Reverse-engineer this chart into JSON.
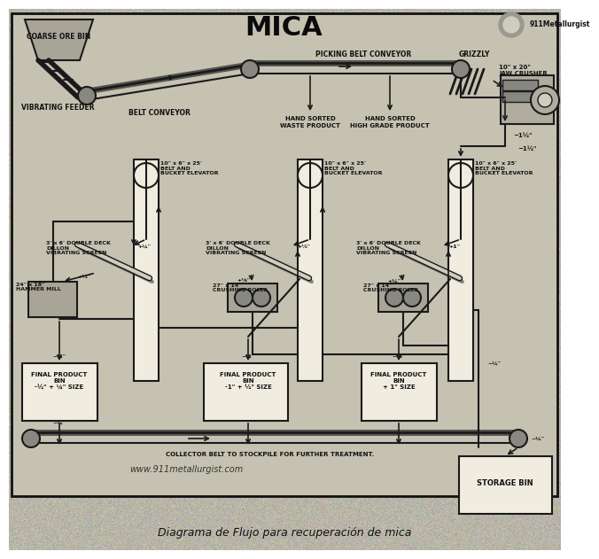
{
  "title": "MICA",
  "subtitle": "Diagrama de Flujo para recuperación de mica",
  "bg_color": "#b8b5a8",
  "inner_bg": "#c8c5b5",
  "border_color": "#1a1a1a",
  "lc": "#1a1a1a",
  "tc": "#111111",
  "white": "#f0ede0",
  "gray": "#888880",
  "website": "www.911metallurgist.com",
  "logo": "911Metallurgist"
}
